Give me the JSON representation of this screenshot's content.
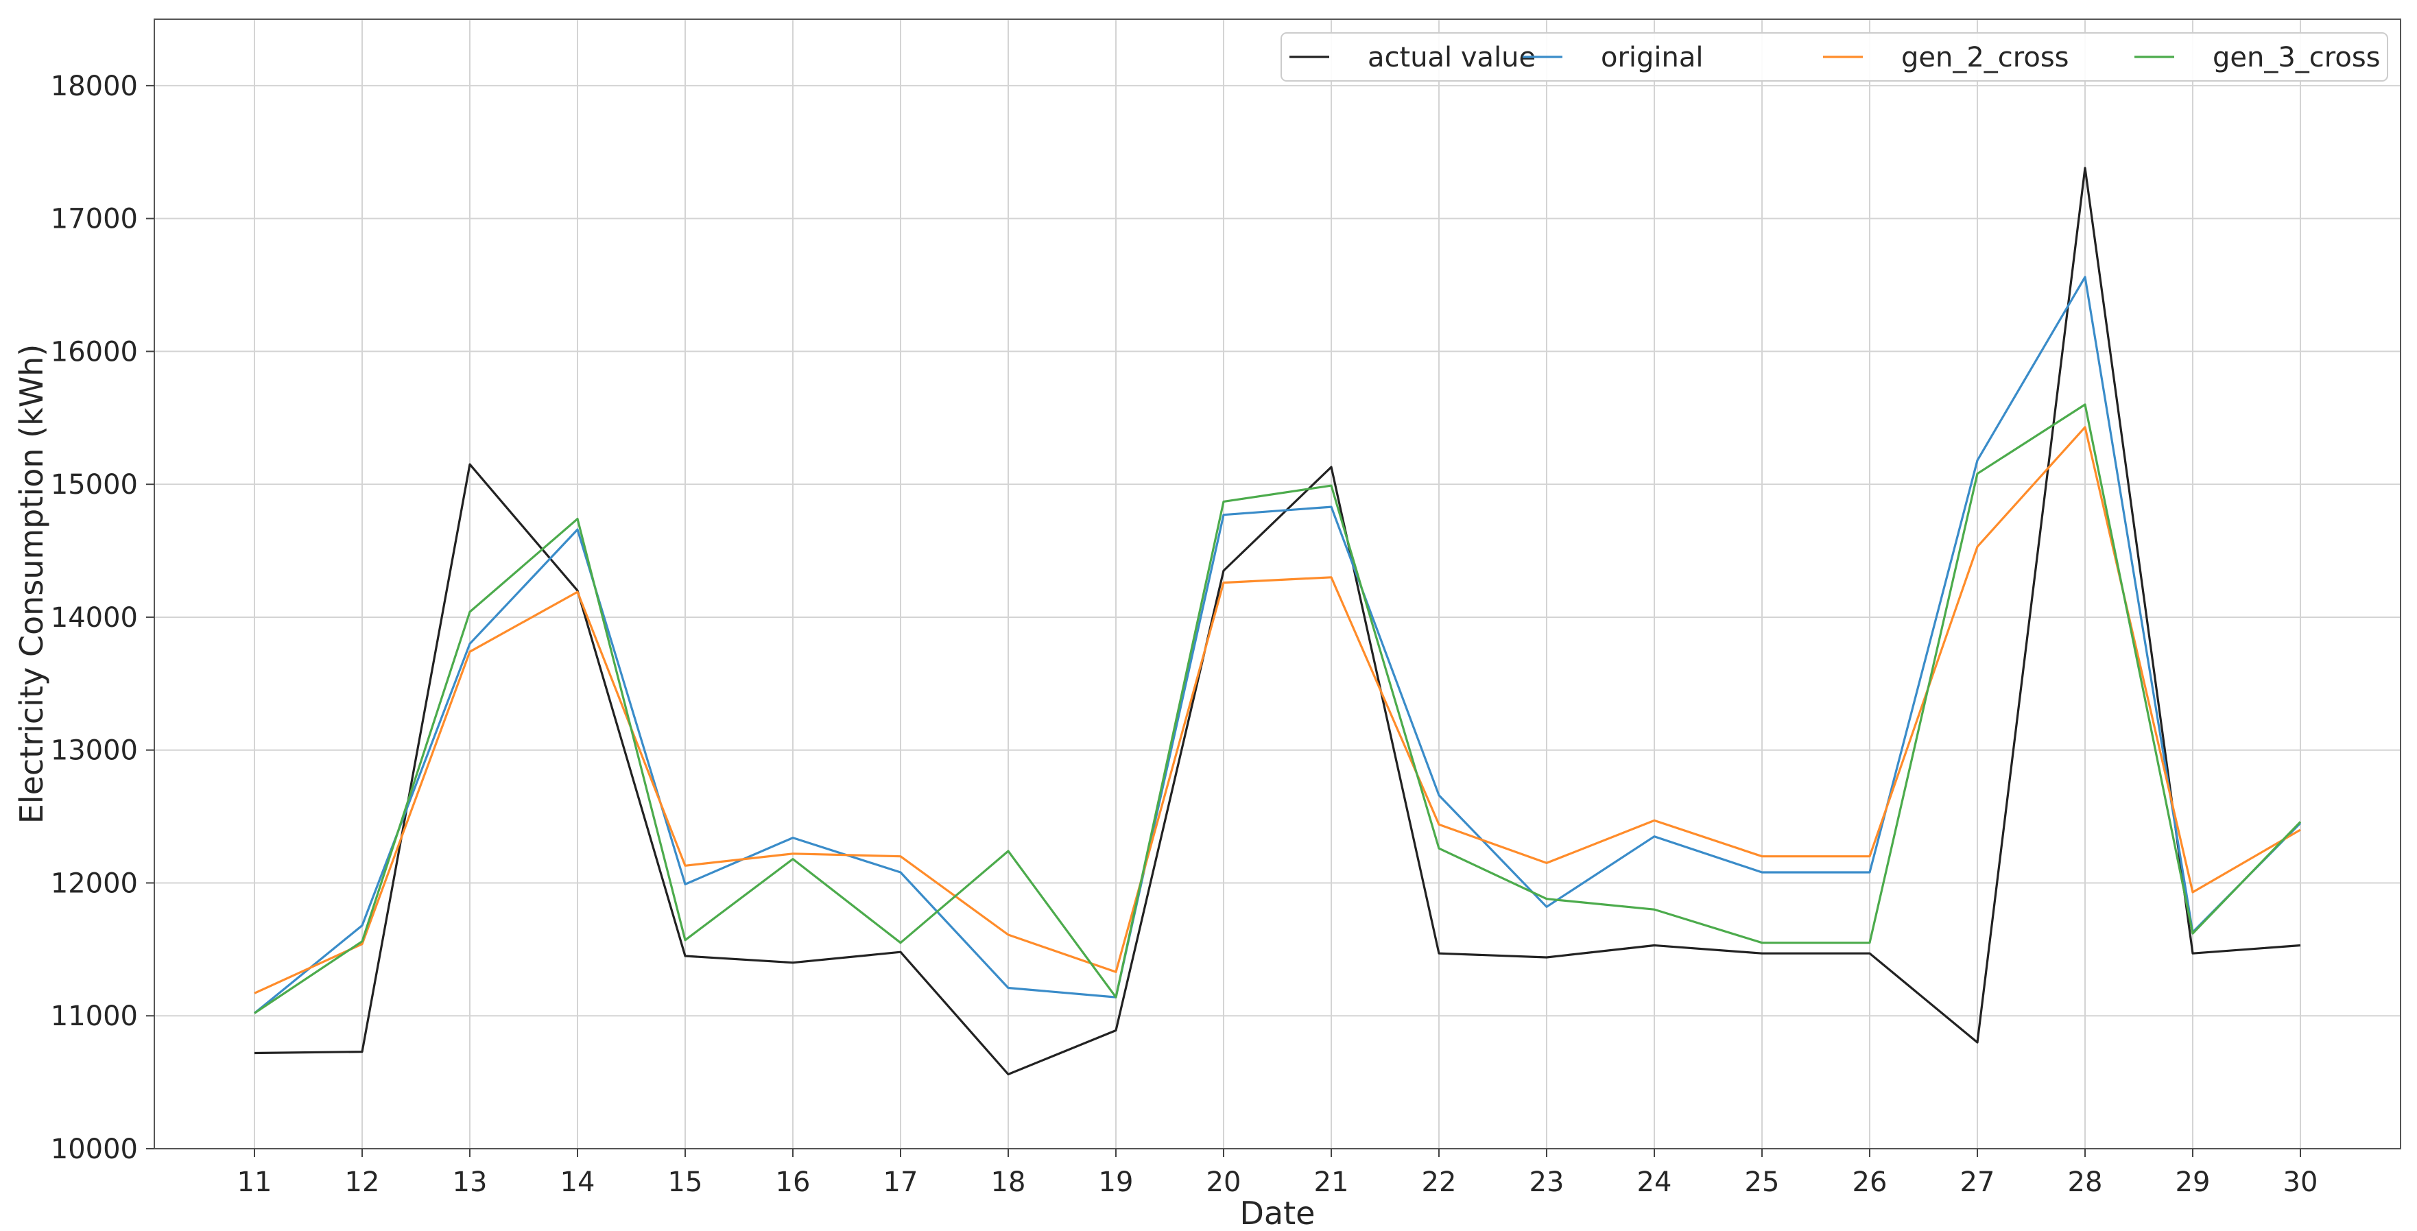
{
  "chart_data": {
    "type": "line",
    "title": "",
    "xlabel": "Date",
    "ylabel": "Electricity Consumption (kWh)",
    "categories": [
      "11",
      "12",
      "13",
      "14",
      "15",
      "16",
      "17",
      "18",
      "19",
      "20",
      "21",
      "22",
      "23",
      "24",
      "25",
      "26",
      "27",
      "28",
      "29",
      "30"
    ],
    "ylim": [
      10000,
      18500
    ],
    "yticks": [
      10000,
      11000,
      12000,
      13000,
      14000,
      15000,
      16000,
      17000,
      18000
    ],
    "grid": true,
    "legend_position": "top-right",
    "series": [
      {
        "name": "actual value",
        "color": "#222222",
        "values": [
          10720,
          10730,
          15150,
          14200,
          11450,
          11400,
          11480,
          10560,
          10890,
          14350,
          15130,
          11470,
          11440,
          11530,
          11470,
          11470,
          10800,
          17380,
          11470,
          11530
        ]
      },
      {
        "name": "original",
        "color": "#3a8cc9",
        "values": [
          11020,
          11680,
          13800,
          14660,
          11990,
          12340,
          12080,
          11210,
          11140,
          14770,
          14830,
          12660,
          11820,
          12350,
          12080,
          12080,
          15180,
          16560,
          11630,
          12450
        ]
      },
      {
        "name": "gen_2_cross",
        "color": "#ff8c2a",
        "values": [
          11170,
          11540,
          13740,
          14190,
          12130,
          12220,
          12200,
          11610,
          11330,
          14260,
          14300,
          12440,
          12150,
          12470,
          12200,
          12200,
          14530,
          15430,
          11930,
          12400
        ]
      },
      {
        "name": "gen_3_cross",
        "color": "#4cab4c",
        "values": [
          11020,
          11560,
          14040,
          14740,
          11570,
          12180,
          11550,
          12240,
          11140,
          14870,
          14990,
          12260,
          11880,
          11800,
          11550,
          11550,
          15080,
          15600,
          11620,
          12460
        ]
      }
    ]
  }
}
